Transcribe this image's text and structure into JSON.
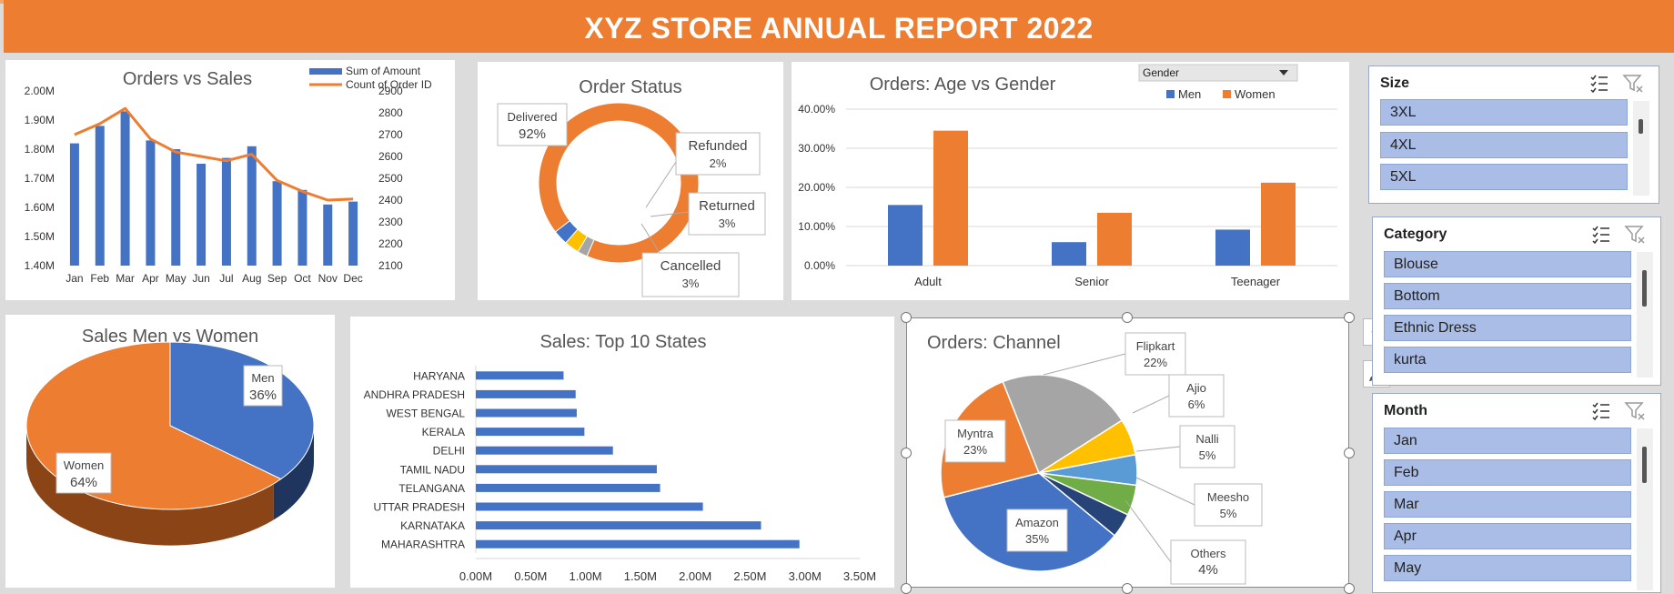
{
  "title": "XYZ STORE ANNUAL REPORT 2022",
  "chart_data": [
    {
      "id": "orders-vs-sales",
      "type": "bar+line",
      "title": "Orders vs Sales",
      "categories": [
        "Jan",
        "Feb",
        "Mar",
        "Apr",
        "May",
        "Jun",
        "Jul",
        "Aug",
        "Sep",
        "Oct",
        "Nov",
        "Dec"
      ],
      "series": [
        {
          "name": "Sum of Amount",
          "type": "bar",
          "axis": "left",
          "color": "#4472c4",
          "values": [
            1.82,
            1.88,
            1.93,
            1.83,
            1.8,
            1.75,
            1.77,
            1.81,
            1.69,
            1.66,
            1.61,
            1.62
          ]
        },
        {
          "name": "Count of Order ID",
          "type": "line",
          "axis": "right",
          "color": "#ed7d31",
          "values": [
            2700,
            2750,
            2820,
            2680,
            2620,
            2600,
            2580,
            2610,
            2490,
            2440,
            2400,
            2405
          ]
        }
      ],
      "y_left": {
        "min": 1.4,
        "max": 2.0,
        "ticks": [
          "1.40M",
          "1.50M",
          "1.60M",
          "1.70M",
          "1.80M",
          "1.90M",
          "2.00M"
        ]
      },
      "y_right": {
        "min": 2100,
        "max": 2900,
        "ticks": [
          "2100",
          "2200",
          "2300",
          "2400",
          "2500",
          "2600",
          "2700",
          "2800",
          "2900"
        ]
      },
      "legend": "top-right"
    },
    {
      "id": "order-status",
      "type": "donut",
      "title": "Order Status",
      "slices": [
        {
          "label": "Delivered",
          "pct_label": "92%",
          "value": 92,
          "color": "#ed7d31"
        },
        {
          "label": "Refunded",
          "pct_label": "2%",
          "value": 2,
          "color": "#a5a5a5"
        },
        {
          "label": "Returned",
          "pct_label": "3%",
          "value": 3,
          "color": "#ffc000"
        },
        {
          "label": "Cancelled",
          "pct_label": "3%",
          "value": 3,
          "color": "#4472c4"
        }
      ]
    },
    {
      "id": "age-vs-gender",
      "type": "bar",
      "title": "Orders: Age vs Gender",
      "filter_label": "Gender",
      "categories": [
        "Adult",
        "Senior",
        "Teenager"
      ],
      "series": [
        {
          "name": "Men",
          "color": "#4472c4",
          "values": [
            15.5,
            6.0,
            9.2
          ]
        },
        {
          "name": "Women",
          "color": "#ed7d31",
          "values": [
            34.5,
            13.5,
            21.2
          ]
        }
      ],
      "ylim": [
        0,
        40
      ],
      "ticks": [
        "0.00%",
        "10.00%",
        "20.00%",
        "30.00%",
        "40.00%"
      ],
      "legend": "top-right"
    },
    {
      "id": "sales-men-women",
      "type": "pie",
      "title": "Sales Men vs Women",
      "slices": [
        {
          "label": "Men",
          "pct_label": "36%",
          "value": 36,
          "color": "#4472c4"
        },
        {
          "label": "Women",
          "pct_label": "64%",
          "value": 64,
          "color": "#ed7d31"
        }
      ]
    },
    {
      "id": "top-states",
      "type": "bar",
      "orientation": "horizontal",
      "title": "Sales: Top 10 States",
      "categories": [
        "HARYANA",
        "ANDHRA PRADESH",
        "WEST BENGAL",
        "KERALA",
        "DELHI",
        "TAMIL NADU",
        "TELANGANA",
        "UTTAR PRADESH",
        "KARNATAKA",
        "MAHARASHTRA"
      ],
      "values": [
        0.8,
        0.91,
        0.92,
        0.99,
        1.25,
        1.65,
        1.68,
        2.07,
        2.6,
        2.95
      ],
      "color": "#4472c4",
      "xlim": [
        0,
        3.5
      ],
      "ticks": [
        "0.00M",
        "0.50M",
        "1.00M",
        "1.50M",
        "2.00M",
        "2.50M",
        "3.00M",
        "3.50M"
      ]
    },
    {
      "id": "orders-channel",
      "type": "pie",
      "title": "Orders: Channel",
      "slices": [
        {
          "label": "Amazon",
          "pct_label": "35%",
          "value": 35,
          "color": "#4472c4"
        },
        {
          "label": "Myntra",
          "pct_label": "23%",
          "value": 23,
          "color": "#ed7d31"
        },
        {
          "label": "Flipkart",
          "pct_label": "22%",
          "value": 22,
          "color": "#a5a5a5"
        },
        {
          "label": "Ajio",
          "pct_label": "6%",
          "value": 6,
          "color": "#ffc000"
        },
        {
          "label": "Nalli",
          "pct_label": "5%",
          "value": 5,
          "color": "#5b9bd5"
        },
        {
          "label": "Meesho",
          "pct_label": "5%",
          "value": 5,
          "color": "#70ad47"
        },
        {
          "label": "Others",
          "pct_label": "4%",
          "value": 4,
          "color": "#264478"
        }
      ]
    }
  ],
  "slicers": {
    "size": {
      "title": "Size",
      "items": [
        "3XL",
        "4XL",
        "5XL"
      ]
    },
    "category": {
      "title": "Category",
      "items": [
        "Blouse",
        "Bottom",
        "Ethnic Dress",
        "kurta"
      ]
    },
    "month": {
      "title": "Month",
      "items": [
        "Jan",
        "Feb",
        "Mar",
        "Apr",
        "May"
      ]
    }
  },
  "icons": {
    "multi_select": "multi-select-icon",
    "clear_filter": "clear-filter-icon",
    "add_chart_element": "plus-icon",
    "chart_style": "brush-icon"
  }
}
